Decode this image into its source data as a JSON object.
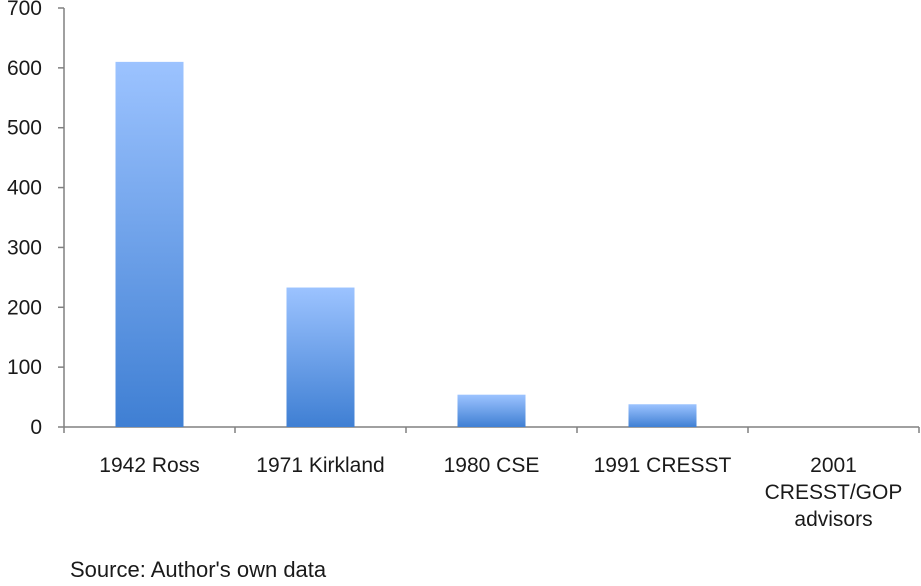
{
  "chart_data": {
    "type": "bar",
    "title": "",
    "xlabel": "",
    "ylabel": "",
    "categories": [
      [
        "1942 Ross"
      ],
      [
        "1971 Kirkland"
      ],
      [
        "1980 CSE"
      ],
      [
        "1991 CRESST"
      ],
      [
        "2001",
        "CRESST/GOP",
        "advisors"
      ]
    ],
    "values": [
      610,
      233,
      54,
      38,
      0
    ],
    "ylim": [
      0,
      700
    ],
    "yticks": [
      0,
      100,
      200,
      300,
      400,
      500,
      600,
      700
    ],
    "grid": false,
    "legend": "none",
    "colors": {
      "bar_top": "#9cc3ff",
      "bar_bottom": "#3f7fd3",
      "axis": "#808080",
      "text": "#1a1a1a"
    }
  },
  "source_note": "Source: Author's own data"
}
